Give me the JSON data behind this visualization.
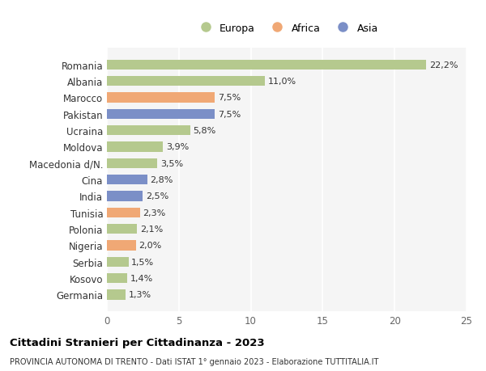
{
  "countries": [
    "Romania",
    "Albania",
    "Marocco",
    "Pakistan",
    "Ucraina",
    "Moldova",
    "Macedonia d/N.",
    "Cina",
    "India",
    "Tunisia",
    "Polonia",
    "Nigeria",
    "Serbia",
    "Kosovo",
    "Germania"
  ],
  "values": [
    22.2,
    11.0,
    7.5,
    7.5,
    5.8,
    3.9,
    3.5,
    2.8,
    2.5,
    2.3,
    2.1,
    2.0,
    1.5,
    1.4,
    1.3
  ],
  "labels": [
    "22,2%",
    "11,0%",
    "7,5%",
    "7,5%",
    "5,8%",
    "3,9%",
    "3,5%",
    "2,8%",
    "2,5%",
    "2,3%",
    "2,1%",
    "2,0%",
    "1,5%",
    "1,4%",
    "1,3%"
  ],
  "continent": [
    "Europa",
    "Europa",
    "Africa",
    "Asia",
    "Europa",
    "Europa",
    "Europa",
    "Asia",
    "Asia",
    "Africa",
    "Europa",
    "Africa",
    "Europa",
    "Europa",
    "Europa"
  ],
  "colors": {
    "Europa": "#b5c98e",
    "Africa": "#f0a875",
    "Asia": "#7b8fc7"
  },
  "title": "Cittadini Stranieri per Cittadinanza - 2023",
  "subtitle": "PROVINCIA AUTONOMA DI TRENTO - Dati ISTAT 1° gennaio 2023 - Elaborazione TUTTITALIA.IT",
  "xlim": [
    0,
    25
  ],
  "xticks": [
    0,
    5,
    10,
    15,
    20,
    25
  ],
  "background_color": "#ffffff",
  "plot_bg_color": "#f5f5f5",
  "grid_color": "#ffffff",
  "bar_height": 0.6
}
